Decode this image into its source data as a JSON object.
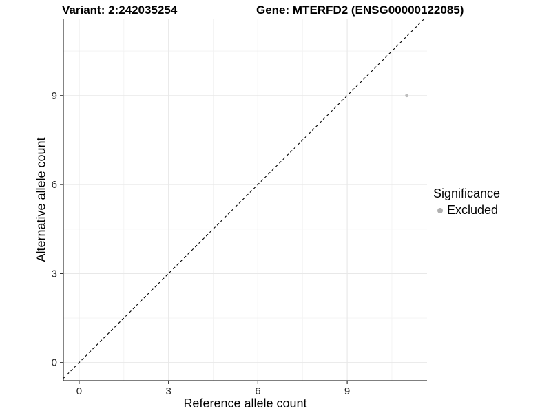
{
  "chart_data": {
    "type": "scatter",
    "title_left": "Variant: 2:242035254",
    "title_right": "Gene: MTERFD2 (ENSG00000122085)",
    "xlabel": "Reference allele count",
    "ylabel": "Alternative allele count",
    "xlim": [
      -0.53,
      11.68
    ],
    "ylim": [
      -0.61,
      11.57
    ],
    "xticks": [
      0,
      3,
      6,
      9
    ],
    "yticks": [
      0,
      3,
      6,
      9
    ],
    "minor_xticks": [
      1.5,
      4.5,
      7.5,
      10.5
    ],
    "minor_yticks": [
      1.5,
      4.5,
      7.5,
      10.5
    ],
    "grid": "on",
    "legend_position": "right",
    "reference_line": {
      "equation": "y = x",
      "style": "dashed",
      "color": "#000000"
    },
    "series": [
      {
        "name": "Excluded",
        "color": "#bdbdbd",
        "points": [
          {
            "x": 11,
            "y": 9
          }
        ]
      }
    ],
    "legend": {
      "title": "Significance",
      "items": [
        {
          "label": "Excluded",
          "color": "#b0b0b0"
        }
      ]
    },
    "style": {
      "grid_major": "#e8e8e8",
      "grid_minor": "#f3f3f3",
      "axis": "#333333",
      "tick_text": "#262626",
      "title_color": "#000000",
      "background": "#ffffff"
    }
  }
}
